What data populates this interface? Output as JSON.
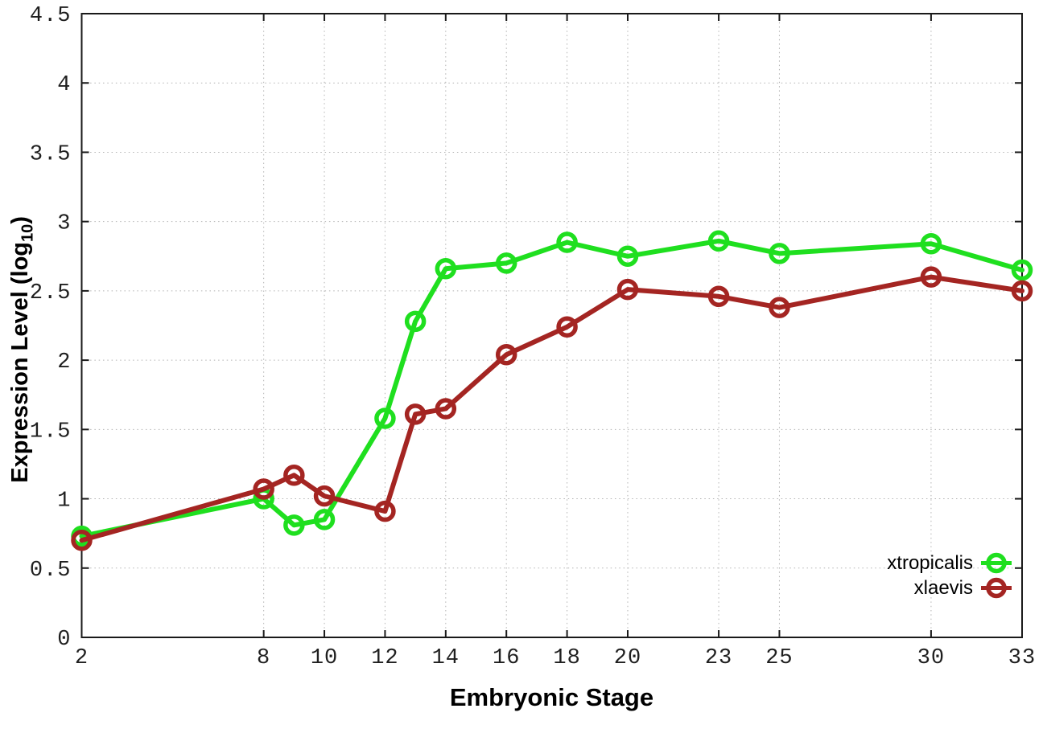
{
  "figure": {
    "background_color": "#ffffff",
    "border_color": "#1a1a1a",
    "grid_color": "#b3b3b3",
    "grid_style": "dotted"
  },
  "chart_data": {
    "type": "line",
    "title": "",
    "xlabel": "Embryonic Stage",
    "ylabel": "Expression Level (log10)",
    "ylabel_parts": {
      "prefix": "Expression Level (log",
      "sub": "10",
      "suffix": ")"
    },
    "xlim": [
      2,
      33
    ],
    "ylim": [
      0,
      4.5
    ],
    "x": [
      2,
      8,
      9,
      10,
      12,
      13,
      14,
      16,
      18,
      20,
      23,
      25,
      30,
      33
    ],
    "x_ticks": [
      2,
      8,
      10,
      12,
      14,
      16,
      18,
      20,
      23,
      25,
      30,
      33
    ],
    "x_tick_labels": [
      "2",
      "8",
      "10",
      "12",
      "14",
      "16",
      "18",
      "20",
      "23",
      "25",
      "30",
      "33"
    ],
    "y_ticks": [
      0,
      0.5,
      1,
      1.5,
      2,
      2.5,
      3,
      3.5,
      4,
      4.5
    ],
    "y_tick_labels": [
      "0",
      "0.5",
      "1",
      "1.5",
      "2",
      "2.5",
      "3",
      "3.5",
      "4",
      "4.5"
    ],
    "grid": true,
    "legend_position": "inside bottom-right",
    "marker": "open-circle",
    "series": [
      {
        "name": "xtropicalis",
        "color": "#1fdf1f",
        "values": [
          0.73,
          1.0,
          0.81,
          0.85,
          1.58,
          2.28,
          2.66,
          2.7,
          2.85,
          2.75,
          2.86,
          2.77,
          2.84,
          2.65
        ]
      },
      {
        "name": "xlaevis",
        "color": "#a42522",
        "values": [
          0.7,
          1.07,
          1.17,
          1.02,
          0.91,
          1.61,
          1.65,
          2.04,
          2.24,
          2.51,
          2.46,
          2.38,
          2.6,
          2.5
        ]
      }
    ]
  }
}
